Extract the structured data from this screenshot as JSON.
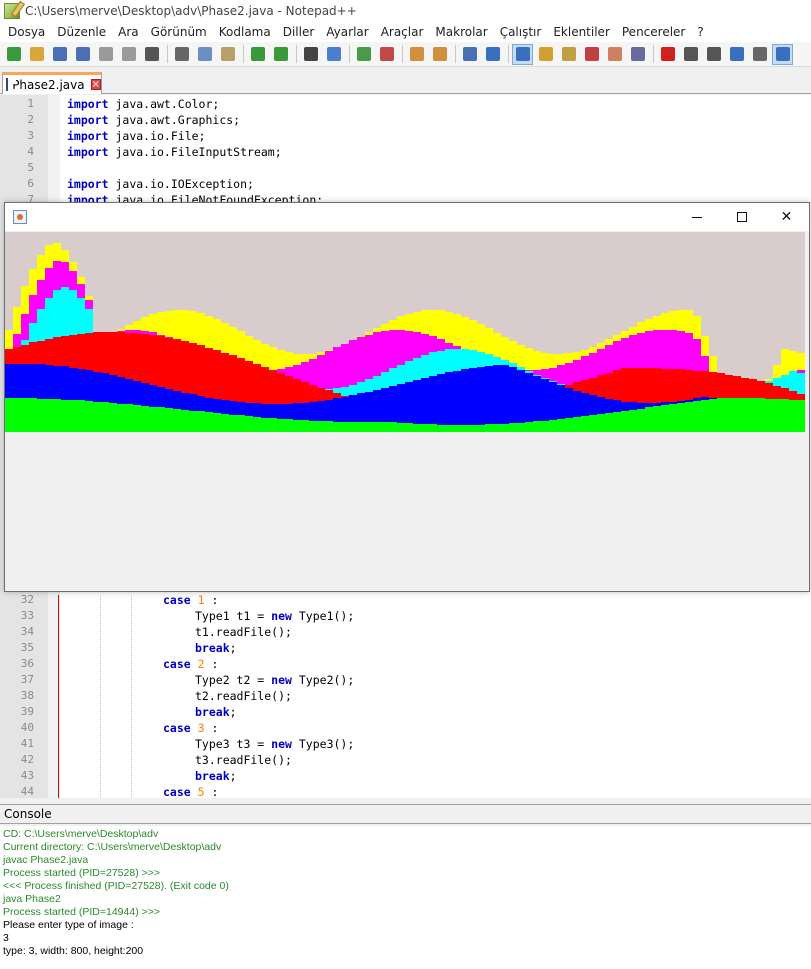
{
  "window": {
    "title": "C:\\Users\\merve\\Desktop\\adv\\Phase2.java - Notepad++"
  },
  "menu": [
    "Dosya",
    "Düzenle",
    "Ara",
    "Görünüm",
    "Kodlama",
    "Diller",
    "Ayarlar",
    "Araçlar",
    "Makrolar",
    "Çalıştır",
    "Eklentiler",
    "Pencereler",
    "?"
  ],
  "toolbar": {
    "icons": [
      "new-file-icon",
      "open-file-icon",
      "save-icon",
      "save-all-icon",
      "close-icon",
      "close-all-icon",
      "print-icon",
      "cut-icon",
      "copy-icon",
      "paste-icon",
      "undo-icon",
      "redo-icon",
      "find-icon",
      "replace-icon",
      "zoom-in-icon",
      "zoom-out-icon",
      "sync-vertical-icon",
      "sync-horizontal-icon",
      "word-wrap-icon",
      "show-all-chars-icon",
      "indent-guide-icon",
      "user-lang-icon",
      "doc-map-icon",
      "function-list-icon",
      "folder-workspace-icon",
      "monitoring-icon",
      "record-macro-icon",
      "stop-record-icon",
      "play-macro-icon",
      "run-macro-multiple-icon",
      "save-macro-icon",
      "console-icon"
    ]
  },
  "tab": {
    "label": "Phase2.java",
    "close": "×"
  },
  "code_top": [
    {
      "n": "1",
      "text": "import java.awt.Color;"
    },
    {
      "n": "2",
      "text": "import java.awt.Graphics;"
    },
    {
      "n": "3",
      "text": "import java.io.File;"
    },
    {
      "n": "4",
      "text": "import java.io.FileInputStream;"
    },
    {
      "n": "5",
      "text": ""
    },
    {
      "n": "6",
      "text": "import java.io.IOException;"
    },
    {
      "n": "7",
      "text": "import java.io.FileNotFoundException;"
    }
  ],
  "code_bottom": [
    {
      "n": "32",
      "kw": "case",
      "num": "1",
      "rest": " :"
    },
    {
      "n": "33",
      "plain": "Type1 t1 = ",
      "kw2": "new",
      "after": " Type1();"
    },
    {
      "n": "34",
      "plain": "t1.readFile();"
    },
    {
      "n": "35",
      "kw": "break",
      "rest": ";"
    },
    {
      "n": "36",
      "kw": "case",
      "num": "2",
      "rest": " :"
    },
    {
      "n": "37",
      "plain": "Type2 t2 = ",
      "kw2": "new",
      "after": " Type2();"
    },
    {
      "n": "38",
      "plain": "t2.readFile();"
    },
    {
      "n": "39",
      "kw": "break",
      "rest": ";"
    },
    {
      "n": "40",
      "kw": "case",
      "num": "3",
      "rest": " :"
    },
    {
      "n": "41",
      "plain": "Type3 t3 = ",
      "kw2": "new",
      "after": " Type3();"
    },
    {
      "n": "42",
      "plain": "t3.readFile();"
    },
    {
      "n": "43",
      "kw": "break",
      "rest": ";"
    },
    {
      "n": "44",
      "kw": "case",
      "num": "5",
      "rest": " :"
    }
  ],
  "java_window": {
    "buttons": [
      "minimize",
      "maximize",
      "close"
    ],
    "canvas_colors": [
      "#ffff00",
      "#ff00ff",
      "#00ffff",
      "#ff0000",
      "#0000ff",
      "#00ff00"
    ],
    "background": "#d8cccc"
  },
  "console": {
    "header": "Console",
    "lines": [
      {
        "text": "CD: C:\\Users\\merve\\Desktop\\adv",
        "color": "green"
      },
      {
        "text": "Current directory: C:\\Users\\merve\\Desktop\\adv",
        "color": "green"
      },
      {
        "text": "javac Phase2.java",
        "color": "green"
      },
      {
        "text": "Process started (PID=27528) >>>",
        "color": "green"
      },
      {
        "text": "<<< Process finished (PID=27528). (Exit code 0)",
        "color": "green"
      },
      {
        "text": "java Phase2",
        "color": "green"
      },
      {
        "text": "Process started (PID=14944) >>>",
        "color": "green"
      },
      {
        "text": "Please enter type of image :",
        "color": "black"
      },
      {
        "text": "3",
        "color": "black"
      },
      {
        "text": "type: 3, width: 800, height:200",
        "color": "black"
      }
    ]
  }
}
